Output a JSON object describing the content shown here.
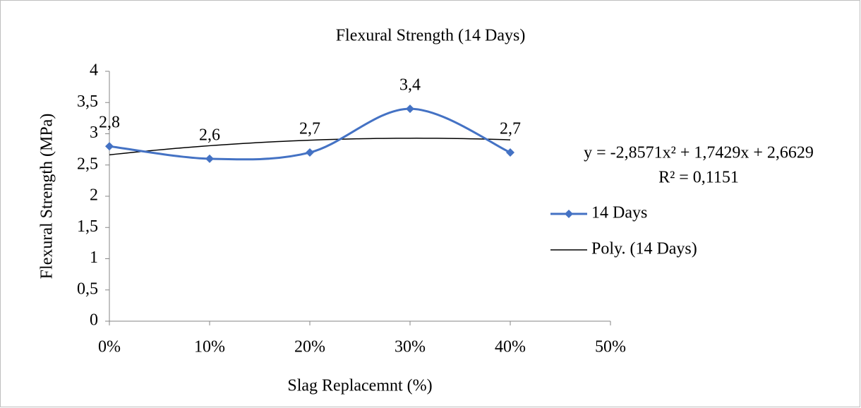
{
  "chart_data": {
    "type": "line",
    "title": "Flexural Strength (14 Days)",
    "x_label": "Slag Replacemnt (%)",
    "y_label": "Flexural Strength (MPa)",
    "x": [
      0,
      0.1,
      0.2,
      0.3,
      0.4
    ],
    "series": [
      {
        "name": "14 Days",
        "color": "#4472c4",
        "values": [
          2.8,
          2.6,
          2.7,
          3.4,
          2.7
        ],
        "value_labels": [
          "2,8",
          "2,6",
          "2,7",
          "3,4",
          "2,7"
        ],
        "smooth": true,
        "marker": "diamond"
      }
    ],
    "trendline": {
      "name": "Poly. (14 Days)",
      "color": "#000000",
      "type": "polynomial",
      "coefficients": [
        -2.8571,
        1.7429,
        2.6629
      ],
      "equation": "y = -2,8571x² + 1,7429x + 2,6629",
      "r2_label": "R² = 0,1151"
    },
    "xlim": [
      0,
      0.5
    ],
    "xticks": [
      {
        "value": 0,
        "label": "0%"
      },
      {
        "value": 0.1,
        "label": "10%"
      },
      {
        "value": 0.2,
        "label": "20%"
      },
      {
        "value": 0.3,
        "label": "30%"
      },
      {
        "value": 0.4,
        "label": "40%"
      },
      {
        "value": 0.5,
        "label": "50%"
      }
    ],
    "ylim": [
      0,
      4
    ],
    "yticks": [
      0,
      {
        "value": 0.5,
        "label": "0,5"
      },
      1,
      {
        "value": 1.5,
        "label": "1,5"
      },
      2,
      {
        "value": 2.5,
        "label": "2,5"
      },
      3,
      {
        "value": 3.5,
        "label": "3,5"
      },
      4
    ],
    "grid": false,
    "legend": "right"
  }
}
